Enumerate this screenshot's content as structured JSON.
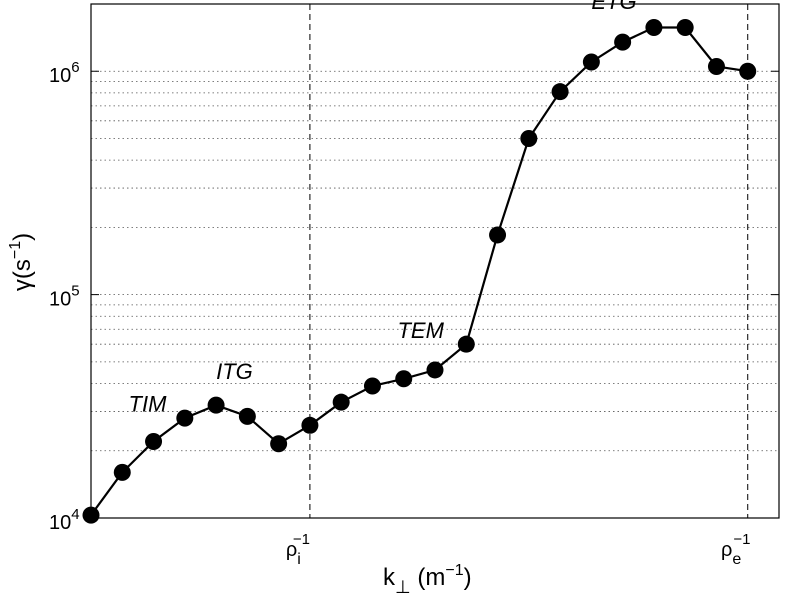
{
  "chart_data": {
    "type": "line",
    "xlabel": {
      "main": "k",
      "sub": "⊥",
      "rest": " (m",
      "sup": "−1",
      "close": ")"
    },
    "ylabel": {
      "main": "γ(s",
      "sup": "−1",
      "close": ")"
    },
    "yscale": "log",
    "ylim": [
      10000,
      2000000
    ],
    "xlim": [
      0,
      22
    ],
    "yticks": [
      {
        "value": 10000,
        "base": "10",
        "exp": "4"
      },
      {
        "value": 100000,
        "base": "10",
        "exp": "5"
      },
      {
        "value": 1000000,
        "base": "10",
        "exp": "6"
      }
    ],
    "grid": {
      "y_minor": true,
      "style": "dotted"
    },
    "vlines": [
      {
        "x": 7,
        "label": "ρ",
        "sub": "i",
        "sup": "−1"
      },
      {
        "x": 21,
        "label": "ρ",
        "sub": "e",
        "sup": "−1"
      }
    ],
    "series": [
      {
        "x": [
          0,
          1,
          2,
          3,
          4,
          5,
          6,
          7,
          8,
          9,
          10,
          11,
          12,
          13,
          14,
          15,
          16,
          17,
          18,
          19,
          20,
          21
        ],
        "values": [
          10300,
          16000,
          22000,
          28000,
          32000,
          28500,
          21500,
          26000,
          33000,
          39000,
          42000,
          46000,
          60000,
          185000,
          500000,
          810000,
          1100000,
          1350000,
          1570000,
          1570000,
          1050000,
          1000000
        ]
      }
    ],
    "annotations": [
      {
        "text": "TIM",
        "x": 1.2,
        "y": 30000
      },
      {
        "text": "ITG",
        "x": 4.0,
        "y": 42000
      },
      {
        "text": "TEM",
        "x": 9.8,
        "y": 64000
      },
      {
        "text": "ETG",
        "x": 16.0,
        "y": 1900000
      }
    ]
  }
}
